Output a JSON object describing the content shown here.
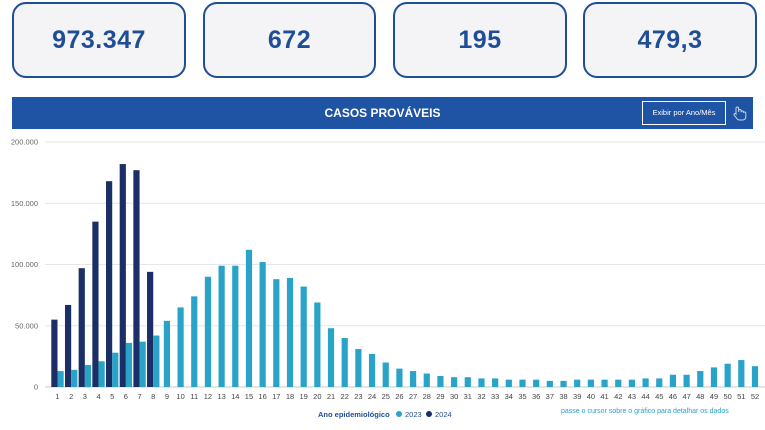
{
  "kpis": [
    {
      "value": "973.347"
    },
    {
      "value": "672"
    },
    {
      "value": "195"
    },
    {
      "value": "479,3"
    }
  ],
  "banner": {
    "title": "CASOS PROVÁVEIS",
    "button_label": "Exibir por Ano/Mês",
    "button_icon": "hand-pointer-icon"
  },
  "colors": {
    "brand": "#1f53a4",
    "kpi_text": "#1f4e96",
    "kpi_border": "#1f4e96",
    "kpi_bg": "#f4f4f6",
    "series_2023": "#2aa3c9",
    "series_2024": "#1b2f66",
    "hint_text": "#2aa3c9"
  },
  "chart_data": {
    "type": "bar",
    "ylim": [
      0,
      200000
    ],
    "yticks": [
      0,
      50000,
      100000,
      150000,
      200000
    ],
    "ytick_labels": [
      "0",
      "50.000",
      "100.000",
      "150.000",
      "200.000"
    ],
    "categories": [
      "1",
      "2",
      "3",
      "4",
      "5",
      "6",
      "7",
      "8",
      "9",
      "10",
      "11",
      "12",
      "13",
      "14",
      "15",
      "16",
      "17",
      "18",
      "19",
      "20",
      "21",
      "22",
      "23",
      "24",
      "25",
      "26",
      "27",
      "28",
      "29",
      "30",
      "31",
      "32",
      "33",
      "34",
      "35",
      "36",
      "37",
      "38",
      "39",
      "40",
      "41",
      "42",
      "43",
      "44",
      "45",
      "46",
      "47",
      "48",
      "49",
      "50",
      "51",
      "52"
    ],
    "series": [
      {
        "name": "2023",
        "color": "#2aa3c9",
        "values": [
          13000,
          14000,
          18000,
          21000,
          28000,
          36000,
          37000,
          42000,
          54000,
          65000,
          74000,
          90000,
          99000,
          99000,
          112000,
          102000,
          88000,
          89000,
          82000,
          69000,
          48000,
          40000,
          31000,
          27000,
          20000,
          15000,
          13000,
          11000,
          9000,
          8000,
          8000,
          7000,
          7000,
          6000,
          6000,
          6000,
          5000,
          5000,
          6000,
          6000,
          6000,
          6000,
          6000,
          7000,
          7000,
          10000,
          10000,
          13000,
          16000,
          19000,
          22000,
          17000
        ]
      },
      {
        "name": "2024",
        "color": "#1b2f66",
        "values": [
          55000,
          67000,
          97000,
          135000,
          168000,
          182000,
          177000,
          94000,
          null,
          null,
          null,
          null,
          null,
          null,
          null,
          null,
          null,
          null,
          null,
          null,
          null,
          null,
          null,
          null,
          null,
          null,
          null,
          null,
          null,
          null,
          null,
          null,
          null,
          null,
          null,
          null,
          null,
          null,
          null,
          null,
          null,
          null,
          null,
          null,
          null,
          null,
          null,
          null,
          null,
          null,
          null,
          null
        ]
      }
    ],
    "legend": {
      "title": "Ano epidemiológico",
      "items": [
        "2023",
        "2024"
      ],
      "placement": "bottom"
    },
    "annotation": "passe o cursor sobre o gráfico para detalhar os dados",
    "grid": true
  }
}
